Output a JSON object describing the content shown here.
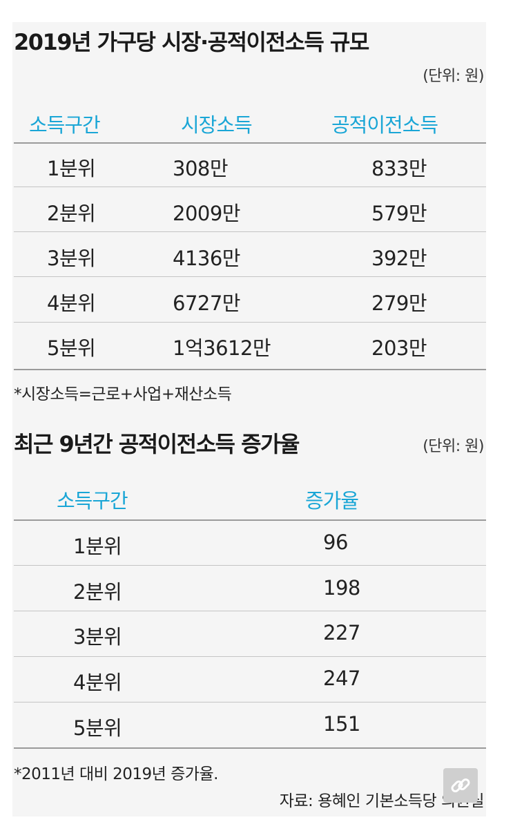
{
  "table1": {
    "title": "2019년 가구당 시장·공적이전소득 규모",
    "unit": "(단위: 원)",
    "headers": [
      "소득구간",
      "시장소득",
      "공적이전소득"
    ],
    "rows": [
      [
        "1분위",
        "308만",
        "833만"
      ],
      [
        "2분위",
        "2009만",
        "579만"
      ],
      [
        "3분위",
        "4136만",
        "392만"
      ],
      [
        "4분위",
        "6727만",
        "279만"
      ],
      [
        "5분위",
        "1억3612만",
        "203만"
      ]
    ],
    "footnote": "*시장소득=근로+사업+재산소득"
  },
  "table2": {
    "title": "최근 9년간 공적이전소득 증가율",
    "unit": "(단위: 원)",
    "headers": [
      "소득구간",
      "증가율"
    ],
    "rows": [
      [
        "1분위",
        "96"
      ],
      [
        "2분위",
        "198"
      ],
      [
        "3분위",
        "227"
      ],
      [
        "4분위",
        "247"
      ],
      [
        "5분위",
        "151"
      ]
    ],
    "footnote": "*2011년 대비 2019년 증가율."
  },
  "source": "자료: 용혜인 기본소득당 의원실",
  "colors": {
    "header": "#1aa6d6",
    "background": "#f5f5f5",
    "rule": "#9a9a9a"
  },
  "icons": [
    "link-icon"
  ]
}
